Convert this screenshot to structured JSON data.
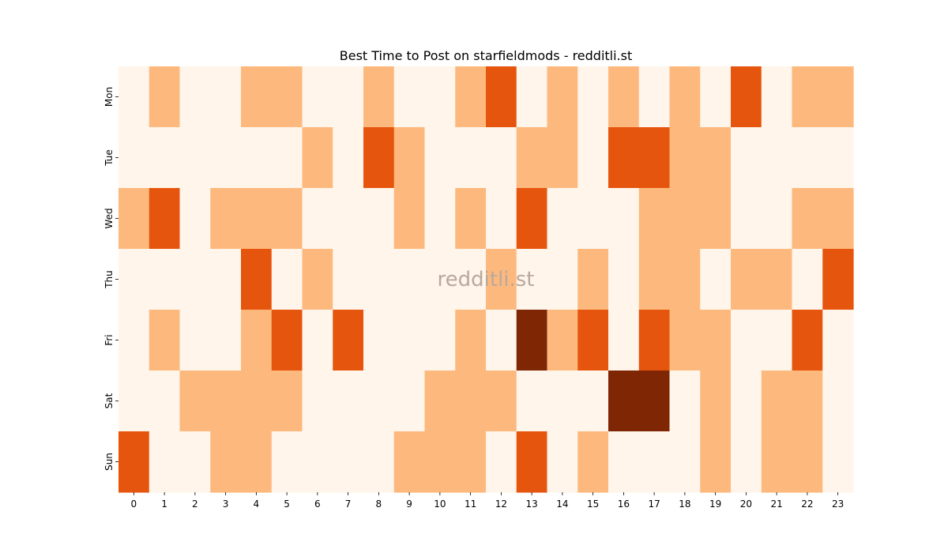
{
  "chart_data": {
    "type": "heatmap",
    "title": "Best Time to Post on starfieldmods - redditli.st",
    "watermark": "redditli.st",
    "xlabel": "",
    "ylabel": "",
    "x_categories": [
      "0",
      "1",
      "2",
      "3",
      "4",
      "5",
      "6",
      "7",
      "8",
      "9",
      "10",
      "11",
      "12",
      "13",
      "14",
      "15",
      "16",
      "17",
      "18",
      "19",
      "20",
      "21",
      "22",
      "23"
    ],
    "y_categories": [
      "Mon",
      "Tue",
      "Wed",
      "Thu",
      "Fri",
      "Sat",
      "Sun"
    ],
    "level_colors": [
      "#fff5eb",
      "#fdb97d",
      "#e6550d",
      "#7f2704"
    ],
    "values": [
      [
        0,
        1,
        0,
        0,
        1,
        1,
        0,
        0,
        1,
        0,
        0,
        1,
        2,
        0,
        1,
        0,
        1,
        0,
        1,
        0,
        2,
        0,
        1,
        1
      ],
      [
        0,
        0,
        0,
        0,
        0,
        0,
        1,
        0,
        2,
        1,
        0,
        0,
        0,
        1,
        1,
        0,
        2,
        2,
        1,
        1,
        0,
        0,
        0,
        0
      ],
      [
        1,
        2,
        0,
        1,
        1,
        1,
        0,
        0,
        0,
        1,
        0,
        1,
        0,
        2,
        0,
        0,
        0,
        1,
        1,
        1,
        0,
        0,
        1,
        1
      ],
      [
        0,
        0,
        0,
        0,
        2,
        0,
        1,
        0,
        0,
        0,
        0,
        0,
        1,
        0,
        0,
        1,
        0,
        1,
        1,
        0,
        1,
        1,
        0,
        2
      ],
      [
        0,
        1,
        0,
        0,
        1,
        2,
        0,
        2,
        0,
        0,
        0,
        1,
        0,
        3,
        1,
        2,
        0,
        2,
        1,
        1,
        0,
        0,
        2,
        0
      ],
      [
        0,
        0,
        1,
        1,
        1,
        1,
        0,
        0,
        0,
        0,
        1,
        1,
        1,
        0,
        0,
        0,
        3,
        3,
        0,
        1,
        0,
        1,
        1,
        0
      ],
      [
        2,
        0,
        0,
        1,
        1,
        0,
        0,
        0,
        0,
        1,
        1,
        1,
        0,
        2,
        0,
        1,
        0,
        0,
        0,
        1,
        0,
        1,
        1,
        0
      ]
    ],
    "colorbar": false,
    "grid": false
  }
}
